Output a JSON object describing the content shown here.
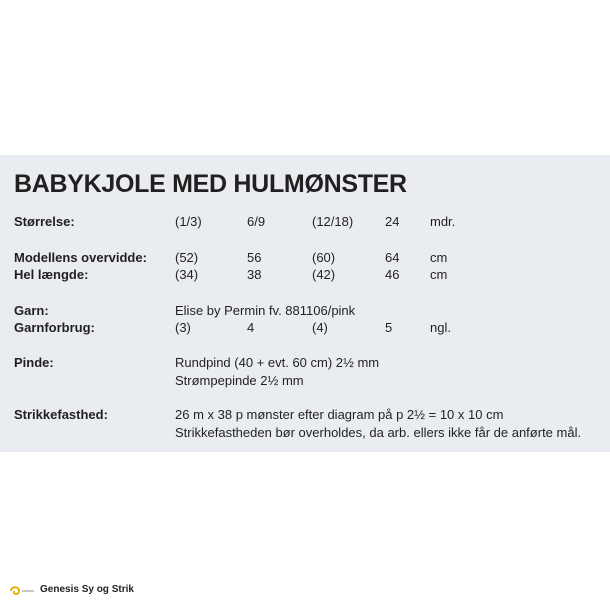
{
  "title": "BABYKJOLE MED HULMØNSTER",
  "rows": [
    {
      "label": "Størrelse:",
      "cells": [
        "(1/3)",
        "6/9",
        "(12/18)",
        "24",
        "mdr."
      ]
    },
    {
      "label": "Modellens overvidde:",
      "cells": [
        "(52)",
        "56",
        "(60)",
        "64",
        "cm"
      ]
    },
    {
      "label": "Hel længde:",
      "cells": [
        "(34)",
        "38",
        "(42)",
        "46",
        "cm"
      ]
    },
    {
      "label": "Garn:",
      "lines": [
        "Elise by Permin fv. 881106/pink"
      ]
    },
    {
      "label": "Garnforbrug:",
      "cells": [
        "(3)",
        "4",
        "(4)",
        "5",
        "ngl."
      ]
    },
    {
      "label": "Pinde:",
      "lines": [
        "Rundpind (40 + evt. 60 cm) 2½ mm",
        "Strømpepinde 2½ mm"
      ]
    },
    {
      "label": "Strikkefasthed:",
      "lines": [
        "26 m x 38 p mønster efter diagram på p 2½ = 10 x 10 cm",
        "Strikkefastheden bør overholdes, da arb. ellers ikke får de anførte mål."
      ]
    }
  ],
  "footer": {
    "brand": "Genesis Sy og Strik"
  }
}
